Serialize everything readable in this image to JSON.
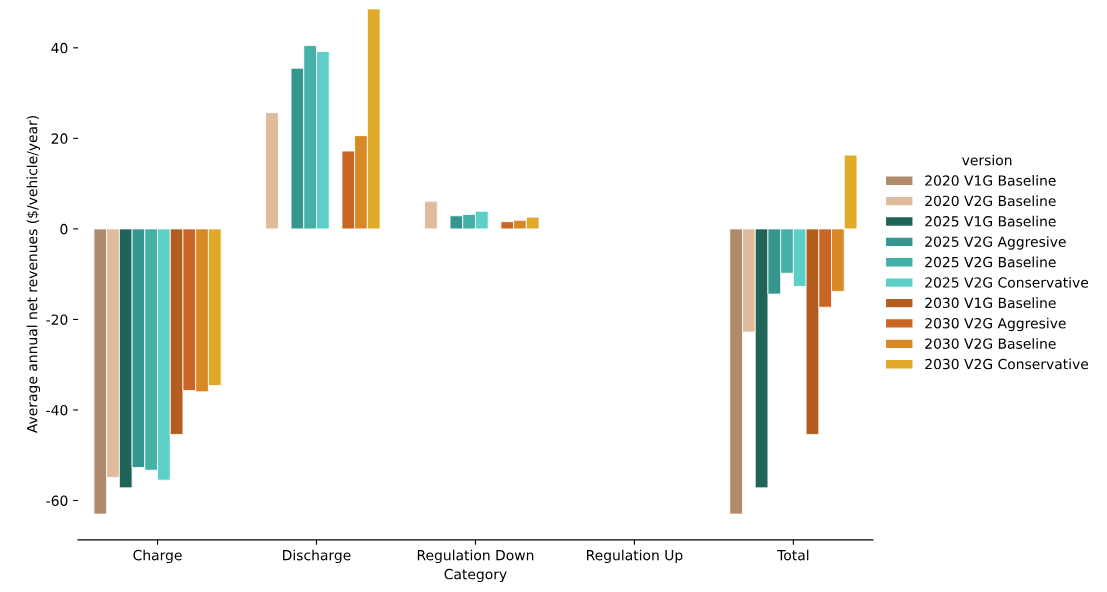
{
  "chart_data": {
    "type": "bar",
    "xlabel": "Category",
    "ylabel": "Average annual net revenues ($/vehicle/year)",
    "legend_title": "version",
    "legend": "right",
    "categories": [
      "Charge",
      "Discharge",
      "Regulation Down",
      "Regulation Up",
      "Total"
    ],
    "ylim": [
      -68.7,
      48.8
    ],
    "yticks": [
      -60,
      -40,
      -20,
      0,
      20,
      40
    ],
    "grid": false,
    "series": [
      {
        "name": "2020 V1G Baseline",
        "color": "#b08b6b",
        "values": [
          -63.0,
          null,
          null,
          null,
          -63.0
        ]
      },
      {
        "name": "2020 V2G Baseline",
        "color": "#dfbb9b",
        "values": [
          -54.9,
          25.7,
          6.1,
          null,
          -22.8
        ]
      },
      {
        "name": "2025 V1G Baseline",
        "color": "#1f6459",
        "values": [
          -57.2,
          null,
          null,
          null,
          -57.2
        ]
      },
      {
        "name": "2025 V2G Aggresive",
        "color": "#35968f",
        "values": [
          -52.7,
          35.5,
          2.9,
          null,
          -14.4
        ]
      },
      {
        "name": "2025 V2G Baseline",
        "color": "#44b1a6",
        "values": [
          -53.3,
          40.5,
          3.2,
          null,
          -9.8
        ]
      },
      {
        "name": "2025 V2G Conservative",
        "color": "#5ecfc6",
        "values": [
          -55.5,
          39.2,
          3.9,
          null,
          -12.7
        ]
      },
      {
        "name": "2030 V1G Baseline",
        "color": "#b45d1e",
        "values": [
          -45.4,
          null,
          null,
          null,
          -45.4
        ]
      },
      {
        "name": "2030 V2G Aggresive",
        "color": "#cb6524",
        "values": [
          -35.7,
          17.2,
          1.6,
          null,
          -17.3
        ]
      },
      {
        "name": "2030 V2G Baseline",
        "color": "#d88925",
        "values": [
          -36.0,
          20.6,
          1.9,
          null,
          -13.8
        ]
      },
      {
        "name": "2030 V2G Conservative",
        "color": "#e0aa28",
        "values": [
          -34.6,
          48.6,
          2.6,
          null,
          16.3
        ]
      }
    ]
  }
}
